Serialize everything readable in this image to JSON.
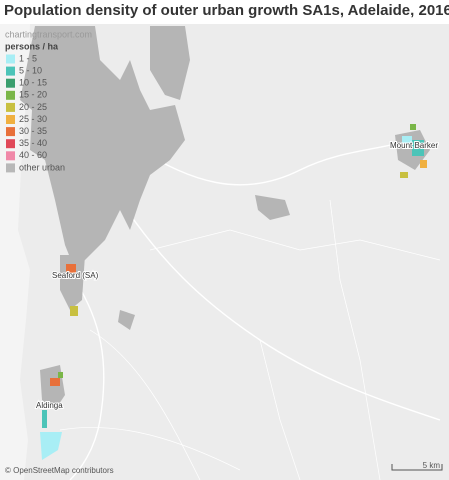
{
  "header": {
    "title": "Population density of outer urban growth SA1s, Adelaide, 2016"
  },
  "legend": {
    "source": "chartingtransport.com",
    "title": "persons / ha",
    "items": [
      {
        "label": "1 - 5",
        "color": "#a8eef5"
      },
      {
        "label": "5 - 10",
        "color": "#4cc4b8"
      },
      {
        "label": "10 - 15",
        "color": "#3a9e6e"
      },
      {
        "label": "15 - 20",
        "color": "#7ab648"
      },
      {
        "label": "20 - 25",
        "color": "#c8c040"
      },
      {
        "label": "25 - 30",
        "color": "#f0b040"
      },
      {
        "label": "30 - 35",
        "color": "#e8703a"
      },
      {
        "label": "35 - 40",
        "color": "#e04858"
      },
      {
        "label": "40 - 60",
        "color": "#f088a8"
      },
      {
        "label": "other urban",
        "color": "#b8b8b8"
      }
    ]
  },
  "map": {
    "places": [
      "Mount Barker",
      "Seaford (SA)",
      "Aldinga"
    ],
    "attribution": "© OpenStreetMap contributors",
    "scale": "5 km"
  }
}
